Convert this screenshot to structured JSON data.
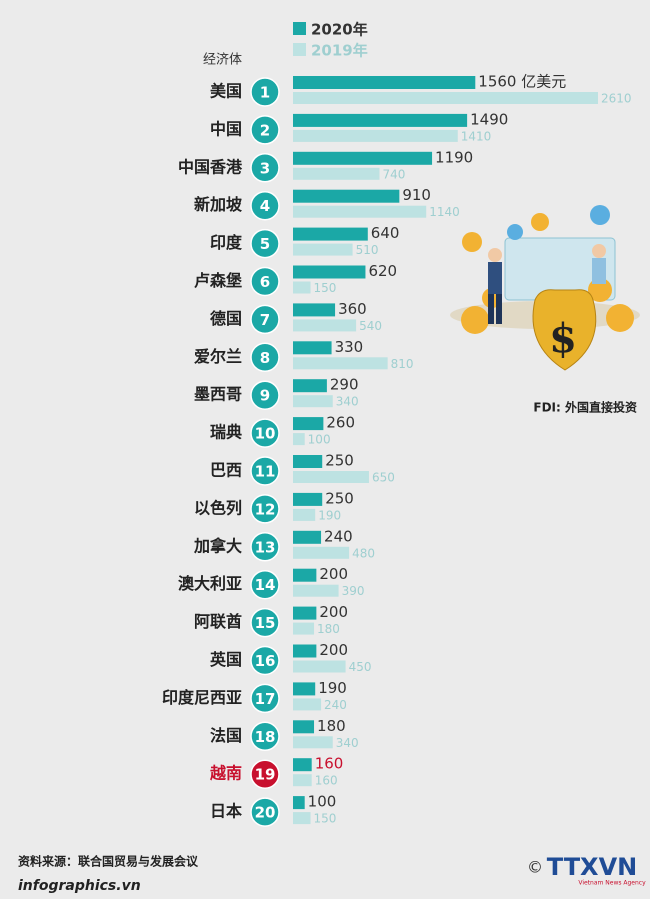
{
  "chart_data": {
    "type": "bar",
    "orientation": "horizontal",
    "category_header": "经济体",
    "categories": [
      "美国",
      "中国",
      "中国香港",
      "新加坡",
      "印度",
      "卢森堡",
      "德国",
      "爱尔兰",
      "墨西哥",
      "瑞典",
      "巴西",
      "以色列",
      "加拿大",
      "澳大利亚",
      "阿联酋",
      "英国",
      "印度尼西亚",
      "法国",
      "越南",
      "日本"
    ],
    "ranks": [
      1,
      2,
      3,
      4,
      5,
      6,
      7,
      8,
      9,
      10,
      11,
      12,
      13,
      14,
      15,
      16,
      17,
      18,
      19,
      20
    ],
    "series": [
      {
        "name": "2020年",
        "color": "#1ba8a6",
        "values": [
          1560,
          1490,
          1190,
          910,
          640,
          620,
          360,
          330,
          290,
          260,
          250,
          250,
          240,
          200,
          200,
          200,
          190,
          180,
          160,
          100
        ],
        "value_labels": [
          "1560 亿美元",
          "1490",
          "1190",
          "910",
          "640",
          "620",
          "360",
          "330",
          "290",
          "260",
          "250",
          "250",
          "240",
          "200",
          "200",
          "200",
          "190",
          "180",
          "160",
          "100"
        ]
      },
      {
        "name": "2019年",
        "color": "#bde2e2",
        "values": [
          2610,
          1410,
          740,
          1140,
          510,
          150,
          540,
          810,
          340,
          100,
          650,
          190,
          480,
          390,
          180,
          450,
          240,
          340,
          160,
          150
        ]
      }
    ],
    "highlight": {
      "category_index": 18,
      "color": "#c8102e"
    },
    "note": "FDI: 外国直接投资",
    "source": "资料来源：联合国贸易与发展会议",
    "website": "infographics.vn",
    "logo": "TTXVN",
    "logo_subtitle": "Vietnam News Agency"
  }
}
